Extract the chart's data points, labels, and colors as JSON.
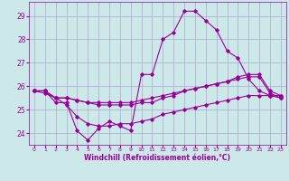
{
  "xlabel": "Windchill (Refroidissement éolien,°C)",
  "background_color": "#cce8e8",
  "line_color": "#990099",
  "grid_color": "#aaaacc",
  "ylim": [
    23.5,
    29.6
  ],
  "xlim": [
    -0.5,
    23.5
  ],
  "yticks": [
    24,
    25,
    26,
    27,
    28,
    29
  ],
  "xticks": [
    0,
    1,
    2,
    3,
    4,
    5,
    6,
    7,
    8,
    9,
    10,
    11,
    12,
    13,
    14,
    15,
    16,
    17,
    18,
    19,
    20,
    21,
    22,
    23
  ],
  "line1_y": [
    25.8,
    25.8,
    25.3,
    25.3,
    24.1,
    23.7,
    24.2,
    24.5,
    24.3,
    24.1,
    26.5,
    26.5,
    28.0,
    28.3,
    29.2,
    29.2,
    28.8,
    28.4,
    27.5,
    27.2,
    26.3,
    25.8,
    25.6,
    25.5
  ],
  "line2_y": [
    25.8,
    25.8,
    25.5,
    25.5,
    25.4,
    25.3,
    25.3,
    25.3,
    25.3,
    25.3,
    25.4,
    25.5,
    25.6,
    25.7,
    25.8,
    25.9,
    26.0,
    26.1,
    26.2,
    26.4,
    26.5,
    26.5,
    25.8,
    25.6
  ],
  "line3_y": [
    25.8,
    25.8,
    25.5,
    25.5,
    25.4,
    25.3,
    25.2,
    25.2,
    25.2,
    25.2,
    25.3,
    25.3,
    25.5,
    25.6,
    25.8,
    25.9,
    26.0,
    26.1,
    26.2,
    26.3,
    26.4,
    26.4,
    25.7,
    25.5
  ],
  "line4_y": [
    25.8,
    25.7,
    25.5,
    25.2,
    24.7,
    24.4,
    24.3,
    24.3,
    24.4,
    24.4,
    24.5,
    24.6,
    24.8,
    24.9,
    25.0,
    25.1,
    25.2,
    25.3,
    25.4,
    25.5,
    25.6,
    25.6,
    25.6,
    25.6
  ]
}
